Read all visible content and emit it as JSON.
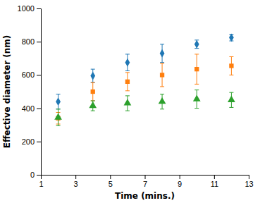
{
  "chart_data": {
    "type": "scatter",
    "xlabel": "Time (mins.)",
    "ylabel": "Effective diameter (nm)",
    "x": [
      2,
      4,
      6,
      8,
      10,
      12
    ],
    "xlim": [
      1,
      13
    ],
    "ylim": [
      0,
      1000
    ],
    "xticks": [
      1,
      3,
      5,
      7,
      9,
      11,
      13
    ],
    "yticks": [
      0,
      200,
      400,
      600,
      800,
      1000
    ],
    "grid": false,
    "series": [
      {
        "marker": "diamond",
        "values": [
          440,
          595,
          675,
          730,
          785,
          825
        ],
        "errors": [
          45,
          40,
          50,
          55,
          25,
          20
        ]
      },
      {
        "marker": "square",
        "values": [
          340,
          500,
          560,
          600,
          635,
          655
        ],
        "errors": [
          35,
          55,
          55,
          70,
          90,
          55
        ]
      },
      {
        "marker": "triangle",
        "values": [
          345,
          415,
          430,
          440,
          455,
          450
        ],
        "errors": [
          50,
          30,
          45,
          45,
          55,
          45
        ]
      }
    ]
  }
}
